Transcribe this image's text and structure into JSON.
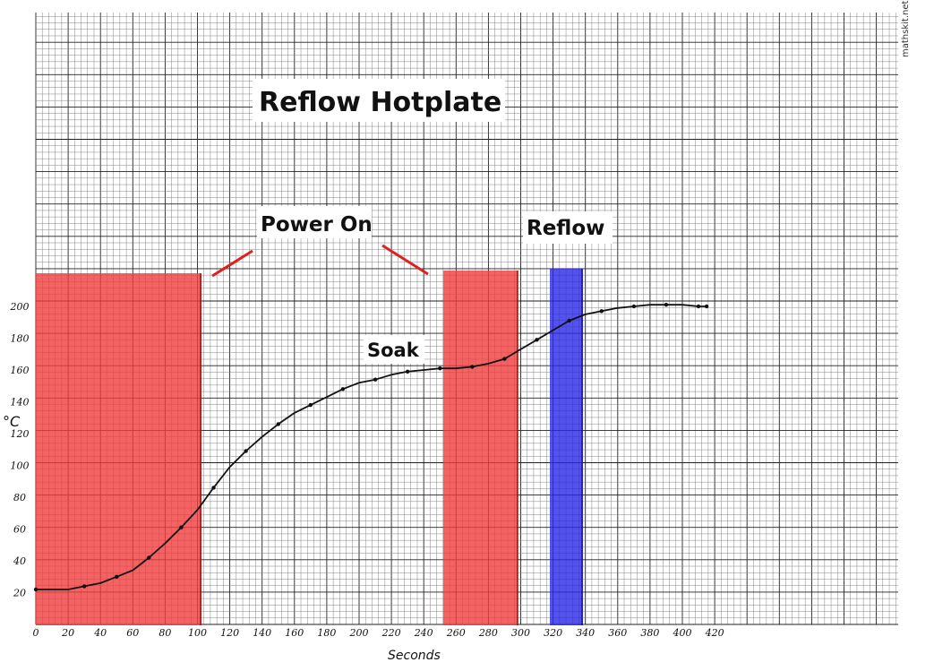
{
  "chart_data": {
    "type": "line",
    "title": "Reflow Hotplate",
    "xlabel": "Seconds",
    "ylabel": "°C",
    "xlim": [
      0,
      420
    ],
    "ylim": [
      0,
      200
    ],
    "x_ticks": [
      "0",
      "20",
      "40",
      "60",
      "80",
      "100",
      "120",
      "140",
      "160",
      "180",
      "200",
      "220",
      "240",
      "260",
      "280",
      "300",
      "320",
      "340",
      "360",
      "380",
      "400",
      "420"
    ],
    "y_ticks": [
      "20",
      "40",
      "60",
      "80",
      "100",
      "120",
      "140",
      "160",
      "180",
      "200"
    ],
    "grid": true,
    "series": [
      {
        "name": "",
        "color": "#111111",
        "points": [
          [
            0,
            22
          ],
          [
            20,
            22
          ],
          [
            30,
            24
          ],
          [
            40,
            26
          ],
          [
            50,
            30
          ],
          [
            60,
            34
          ],
          [
            70,
            42
          ],
          [
            80,
            51
          ],
          [
            90,
            61
          ],
          [
            100,
            72
          ],
          [
            110,
            86
          ],
          [
            120,
            99
          ],
          [
            130,
            109
          ],
          [
            140,
            118
          ],
          [
            150,
            126
          ],
          [
            160,
            133
          ],
          [
            170,
            138
          ],
          [
            180,
            143
          ],
          [
            190,
            148
          ],
          [
            200,
            152
          ],
          [
            210,
            154
          ],
          [
            220,
            157
          ],
          [
            230,
            159
          ],
          [
            240,
            160
          ],
          [
            250,
            161
          ],
          [
            260,
            161
          ],
          [
            270,
            162
          ],
          [
            280,
            164
          ],
          [
            290,
            167
          ],
          [
            300,
            173
          ],
          [
            310,
            179
          ],
          [
            320,
            185
          ],
          [
            330,
            191
          ],
          [
            340,
            195
          ],
          [
            350,
            197
          ],
          [
            360,
            199
          ],
          [
            370,
            200
          ],
          [
            380,
            201
          ],
          [
            390,
            201
          ],
          [
            400,
            201
          ],
          [
            410,
            200
          ],
          [
            415,
            200
          ]
        ]
      }
    ],
    "regions": [
      {
        "x_start": 0,
        "x_end": 102,
        "color": "#f03c3c"
      },
      {
        "x_start": 252,
        "x_end": 298,
        "color": "#f03c3c"
      },
      {
        "x_start": 318,
        "x_end": 338,
        "color": "#2828e6"
      }
    ],
    "annotations": [
      {
        "text": "Power On",
        "color": "#111111"
      },
      {
        "text": "Reflow",
        "color": "#111111"
      },
      {
        "text": "Soak",
        "color": "#111111"
      }
    ]
  },
  "watermark": "mathskit.net"
}
